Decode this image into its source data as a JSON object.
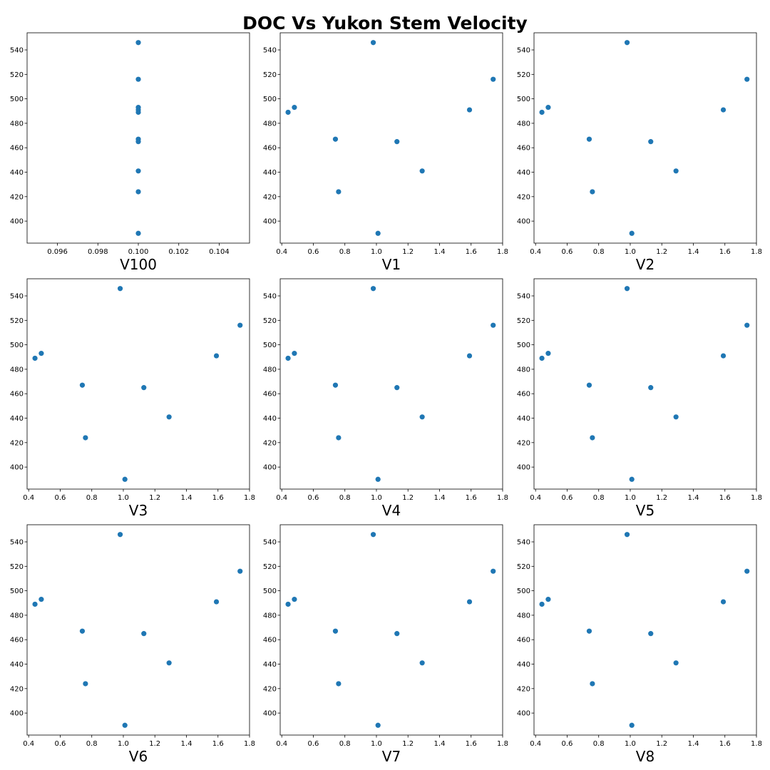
{
  "title": "DOC Vs Yukon Stem Velocity",
  "point_color": "#1f77b4",
  "chart_data": [
    {
      "type": "scatter",
      "xlabel": "V100",
      "xlim": [
        0.0945,
        0.1055
      ],
      "ylim": [
        382,
        554
      ],
      "xticks": [
        0.096,
        0.098,
        0.1,
        0.102,
        0.104
      ],
      "xtick_labels": [
        "0.096",
        "0.098",
        "0.100",
        "0.102",
        "0.104"
      ],
      "yticks": [
        400,
        420,
        440,
        460,
        480,
        500,
        520,
        540
      ],
      "points": [
        [
          0.1,
          546
        ],
        [
          0.1,
          516
        ],
        [
          0.1,
          493
        ],
        [
          0.1,
          491
        ],
        [
          0.1,
          489
        ],
        [
          0.1,
          467
        ],
        [
          0.1,
          465
        ],
        [
          0.1,
          441
        ],
        [
          0.1,
          424
        ],
        [
          0.1,
          390
        ]
      ]
    },
    {
      "type": "scatter",
      "xlabel": "V1",
      "xlim": [
        0.39,
        1.8
      ],
      "ylim": [
        382,
        554
      ],
      "xticks": [
        0.4,
        0.6,
        0.8,
        1.0,
        1.2,
        1.4,
        1.6,
        1.8
      ],
      "xtick_labels": [
        "0.4",
        "0.6",
        "0.8",
        "1.0",
        "1.2",
        "1.4",
        "1.6",
        "1.8"
      ],
      "yticks": [
        400,
        420,
        440,
        460,
        480,
        500,
        520,
        540
      ],
      "points": [
        [
          0.98,
          546
        ],
        [
          1.74,
          516
        ],
        [
          0.48,
          493
        ],
        [
          1.59,
          491
        ],
        [
          0.44,
          489
        ],
        [
          0.74,
          467
        ],
        [
          1.13,
          465
        ],
        [
          1.29,
          441
        ],
        [
          0.76,
          424
        ],
        [
          1.01,
          390
        ]
      ]
    },
    {
      "type": "scatter",
      "xlabel": "V2",
      "xlim": [
        0.39,
        1.8
      ],
      "ylim": [
        382,
        554
      ],
      "xticks": [
        0.4,
        0.6,
        0.8,
        1.0,
        1.2,
        1.4,
        1.6,
        1.8
      ],
      "xtick_labels": [
        "0.4",
        "0.6",
        "0.8",
        "1.0",
        "1.2",
        "1.4",
        "1.6",
        "1.8"
      ],
      "yticks": [
        400,
        420,
        440,
        460,
        480,
        500,
        520,
        540
      ],
      "points": [
        [
          0.98,
          546
        ],
        [
          1.74,
          516
        ],
        [
          0.48,
          493
        ],
        [
          1.59,
          491
        ],
        [
          0.44,
          489
        ],
        [
          0.74,
          467
        ],
        [
          1.13,
          465
        ],
        [
          1.29,
          441
        ],
        [
          0.76,
          424
        ],
        [
          1.01,
          390
        ]
      ]
    },
    {
      "type": "scatter",
      "xlabel": "V3",
      "xlim": [
        0.39,
        1.8
      ],
      "ylim": [
        382,
        554
      ],
      "xticks": [
        0.4,
        0.6,
        0.8,
        1.0,
        1.2,
        1.4,
        1.6,
        1.8
      ],
      "xtick_labels": [
        "0.4",
        "0.6",
        "0.8",
        "1.0",
        "1.2",
        "1.4",
        "1.6",
        "1.8"
      ],
      "yticks": [
        400,
        420,
        440,
        460,
        480,
        500,
        520,
        540
      ],
      "points": [
        [
          0.98,
          546
        ],
        [
          1.74,
          516
        ],
        [
          0.48,
          493
        ],
        [
          1.59,
          491
        ],
        [
          0.44,
          489
        ],
        [
          0.74,
          467
        ],
        [
          1.13,
          465
        ],
        [
          1.29,
          441
        ],
        [
          0.76,
          424
        ],
        [
          1.01,
          390
        ]
      ]
    },
    {
      "type": "scatter",
      "xlabel": "V4",
      "xlim": [
        0.39,
        1.8
      ],
      "ylim": [
        382,
        554
      ],
      "xticks": [
        0.4,
        0.6,
        0.8,
        1.0,
        1.2,
        1.4,
        1.6,
        1.8
      ],
      "xtick_labels": [
        "0.4",
        "0.6",
        "0.8",
        "1.0",
        "1.2",
        "1.4",
        "1.6",
        "1.8"
      ],
      "yticks": [
        400,
        420,
        440,
        460,
        480,
        500,
        520,
        540
      ],
      "points": [
        [
          0.98,
          546
        ],
        [
          1.74,
          516
        ],
        [
          0.48,
          493
        ],
        [
          1.59,
          491
        ],
        [
          0.44,
          489
        ],
        [
          0.74,
          467
        ],
        [
          1.13,
          465
        ],
        [
          1.29,
          441
        ],
        [
          0.76,
          424
        ],
        [
          1.01,
          390
        ]
      ]
    },
    {
      "type": "scatter",
      "xlabel": "V5",
      "xlim": [
        0.39,
        1.8
      ],
      "ylim": [
        382,
        554
      ],
      "xticks": [
        0.4,
        0.6,
        0.8,
        1.0,
        1.2,
        1.4,
        1.6,
        1.8
      ],
      "xtick_labels": [
        "0.4",
        "0.6",
        "0.8",
        "1.0",
        "1.2",
        "1.4",
        "1.6",
        "1.8"
      ],
      "yticks": [
        400,
        420,
        440,
        460,
        480,
        500,
        520,
        540
      ],
      "points": [
        [
          0.98,
          546
        ],
        [
          1.74,
          516
        ],
        [
          0.48,
          493
        ],
        [
          1.59,
          491
        ],
        [
          0.44,
          489
        ],
        [
          0.74,
          467
        ],
        [
          1.13,
          465
        ],
        [
          1.29,
          441
        ],
        [
          0.76,
          424
        ],
        [
          1.01,
          390
        ]
      ]
    },
    {
      "type": "scatter",
      "xlabel": "V6",
      "xlim": [
        0.39,
        1.8
      ],
      "ylim": [
        382,
        554
      ],
      "xticks": [
        0.4,
        0.6,
        0.8,
        1.0,
        1.2,
        1.4,
        1.6,
        1.8
      ],
      "xtick_labels": [
        "0.4",
        "0.6",
        "0.8",
        "1.0",
        "1.2",
        "1.4",
        "1.6",
        "1.8"
      ],
      "yticks": [
        400,
        420,
        440,
        460,
        480,
        500,
        520,
        540
      ],
      "points": [
        [
          0.98,
          546
        ],
        [
          1.74,
          516
        ],
        [
          0.48,
          493
        ],
        [
          1.59,
          491
        ],
        [
          0.44,
          489
        ],
        [
          0.74,
          467
        ],
        [
          1.13,
          465
        ],
        [
          1.29,
          441
        ],
        [
          0.76,
          424
        ],
        [
          1.01,
          390
        ]
      ]
    },
    {
      "type": "scatter",
      "xlabel": "V7",
      "xlim": [
        0.39,
        1.8
      ],
      "ylim": [
        382,
        554
      ],
      "xticks": [
        0.4,
        0.6,
        0.8,
        1.0,
        1.2,
        1.4,
        1.6,
        1.8
      ],
      "xtick_labels": [
        "0.4",
        "0.6",
        "0.8",
        "1.0",
        "1.2",
        "1.4",
        "1.6",
        "1.8"
      ],
      "yticks": [
        400,
        420,
        440,
        460,
        480,
        500,
        520,
        540
      ],
      "points": [
        [
          0.98,
          546
        ],
        [
          1.74,
          516
        ],
        [
          0.48,
          493
        ],
        [
          1.59,
          491
        ],
        [
          0.44,
          489
        ],
        [
          0.74,
          467
        ],
        [
          1.13,
          465
        ],
        [
          1.29,
          441
        ],
        [
          0.76,
          424
        ],
        [
          1.01,
          390
        ]
      ]
    },
    {
      "type": "scatter",
      "xlabel": "V8",
      "xlim": [
        0.39,
        1.8
      ],
      "ylim": [
        382,
        554
      ],
      "xticks": [
        0.4,
        0.6,
        0.8,
        1.0,
        1.2,
        1.4,
        1.6,
        1.8
      ],
      "xtick_labels": [
        "0.4",
        "0.6",
        "0.8",
        "1.0",
        "1.2",
        "1.4",
        "1.6",
        "1.8"
      ],
      "yticks": [
        400,
        420,
        440,
        460,
        480,
        500,
        520,
        540
      ],
      "points": [
        [
          0.98,
          546
        ],
        [
          1.74,
          516
        ],
        [
          0.48,
          493
        ],
        [
          1.59,
          491
        ],
        [
          0.44,
          489
        ],
        [
          0.74,
          467
        ],
        [
          1.13,
          465
        ],
        [
          1.29,
          441
        ],
        [
          0.76,
          424
        ],
        [
          1.01,
          390
        ]
      ]
    }
  ]
}
